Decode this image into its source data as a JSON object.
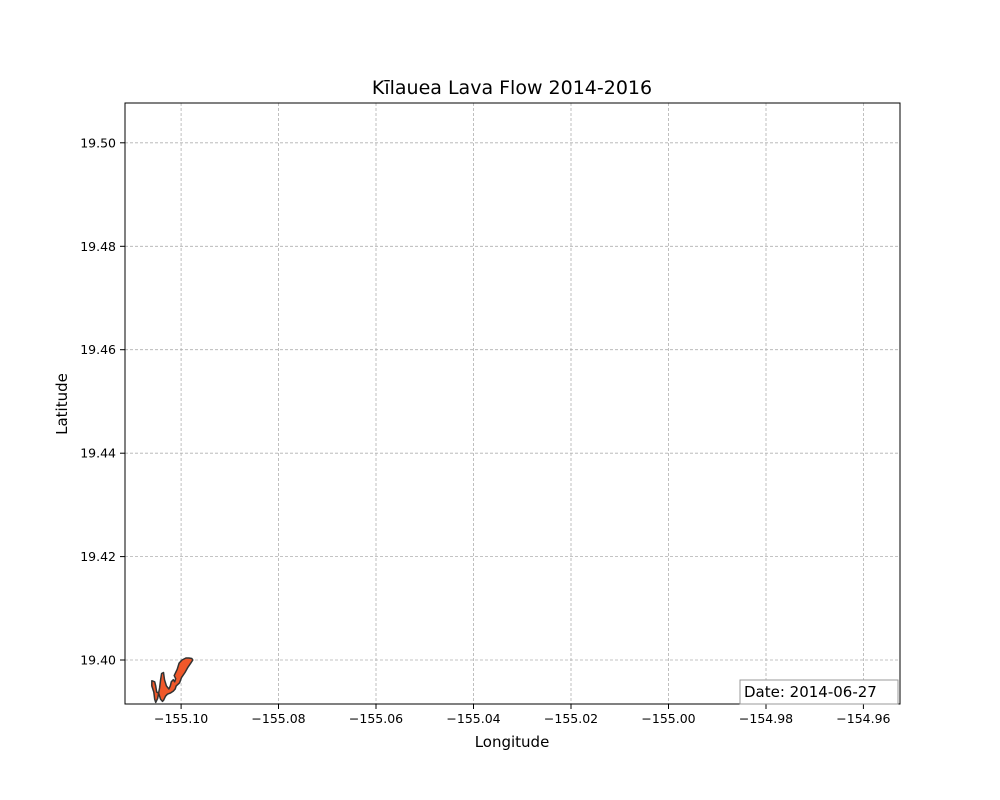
{
  "chart_data": {
    "type": "area",
    "title": "Kīlauea Lava Flow 2014-2016",
    "xlabel": "Longitude",
    "ylabel": "Latitude",
    "xlim": [
      -155.1115,
      -154.9525
    ],
    "ylim": [
      19.3915,
      19.5077
    ],
    "xticks": [
      -155.1,
      -155.08,
      -155.06,
      -155.04,
      -155.02,
      -155.0,
      -154.98,
      -154.96
    ],
    "xtick_labels": [
      "−155.10",
      "−155.08",
      "−155.06",
      "−155.04",
      "−155.02",
      "−155.00",
      "−154.98",
      "−154.96"
    ],
    "yticks": [
      19.4,
      19.42,
      19.44,
      19.46,
      19.48,
      19.5
    ],
    "ytick_labels": [
      "19.40",
      "19.42",
      "19.44",
      "19.46",
      "19.48",
      "19.50"
    ],
    "grid": true,
    "annotation": "Date: 2014-06-27",
    "annotation_placement": "bottom-right",
    "lava_polygon": {
      "fill": "#f0582a",
      "edge": "#333333",
      "lon": [
        -155.106,
        -155.1054,
        -155.1052,
        -155.105,
        -155.1046,
        -155.1044,
        -155.1042,
        -155.104,
        -155.1036,
        -155.1034,
        -155.103,
        -155.1025,
        -155.1022,
        -155.102,
        -155.1016,
        -155.1013,
        -155.1011,
        -155.1014,
        -155.1008,
        -155.1004,
        -155.0998,
        -155.099,
        -155.0984,
        -155.0978,
        -155.0976,
        -155.098,
        -155.0986,
        -155.0992,
        -155.0999,
        -155.1003,
        -155.101,
        -155.1012,
        -155.1016,
        -155.1022,
        -155.1028,
        -155.1032,
        -155.1036,
        -155.1038,
        -155.1042,
        -155.1046,
        -155.1048,
        -155.1052,
        -155.1054,
        -155.1056,
        -155.106
      ],
      "lat": [
        19.396,
        19.3958,
        19.395,
        19.3938,
        19.3936,
        19.3946,
        19.3962,
        19.3974,
        19.3976,
        19.3962,
        19.395,
        19.3944,
        19.395,
        19.3958,
        19.3962,
        19.3958,
        19.3964,
        19.397,
        19.3982,
        19.3994,
        19.4,
        19.4004,
        19.4004,
        19.4003,
        19.4,
        19.3994,
        19.3986,
        19.3976,
        19.3966,
        19.3956,
        19.395,
        19.3944,
        19.394,
        19.3936,
        19.3934,
        19.393,
        19.3922,
        19.392,
        19.3924,
        19.3936,
        19.3926,
        19.3918,
        19.3924,
        19.3938,
        19.395
      ]
    }
  }
}
